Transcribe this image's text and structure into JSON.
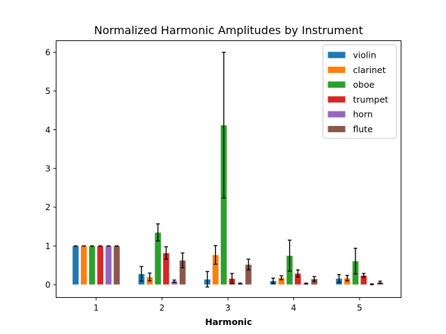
{
  "chart_data": {
    "type": "bar",
    "title": "Normalized Harmonic Amplitudes by Instrument",
    "xlabel": "Harmonic",
    "ylabel": "",
    "categories": [
      "1",
      "2",
      "3",
      "4",
      "5"
    ],
    "ylim": [
      -0.33,
      6.3
    ],
    "yticks": [
      0,
      1,
      2,
      3,
      4,
      5,
      6
    ],
    "grid": false,
    "legend_position": "top-right",
    "error_bars": true,
    "series": [
      {
        "name": "violin",
        "color": "#1f77b4",
        "values": [
          1.0,
          0.28,
          0.14,
          0.1,
          0.16
        ],
        "errors": [
          0.0,
          0.19,
          0.2,
          0.07,
          0.1
        ]
      },
      {
        "name": "clarinet",
        "color": "#ff7f0e",
        "values": [
          1.0,
          0.2,
          0.77,
          0.18,
          0.17
        ],
        "errors": [
          0.0,
          0.1,
          0.24,
          0.05,
          0.07
        ]
      },
      {
        "name": "oboe",
        "color": "#2ca02c",
        "values": [
          1.0,
          1.35,
          4.12,
          0.75,
          0.61
        ],
        "errors": [
          0.0,
          0.22,
          1.88,
          0.4,
          0.33
        ]
      },
      {
        "name": "trumpet",
        "color": "#d62728",
        "values": [
          1.0,
          0.82,
          0.16,
          0.29,
          0.24
        ],
        "errors": [
          0.0,
          0.16,
          0.13,
          0.09,
          0.05
        ]
      },
      {
        "name": "horn",
        "color": "#9467bd",
        "values": [
          1.0,
          0.09,
          0.03,
          0.03,
          0.01
        ],
        "errors": [
          0.0,
          0.03,
          0.01,
          0.01,
          0.01
        ]
      },
      {
        "name": "flute",
        "color": "#8c564b",
        "values": [
          1.0,
          0.63,
          0.52,
          0.15,
          0.06
        ],
        "errors": [
          0.0,
          0.19,
          0.14,
          0.06,
          0.03
        ]
      }
    ]
  }
}
